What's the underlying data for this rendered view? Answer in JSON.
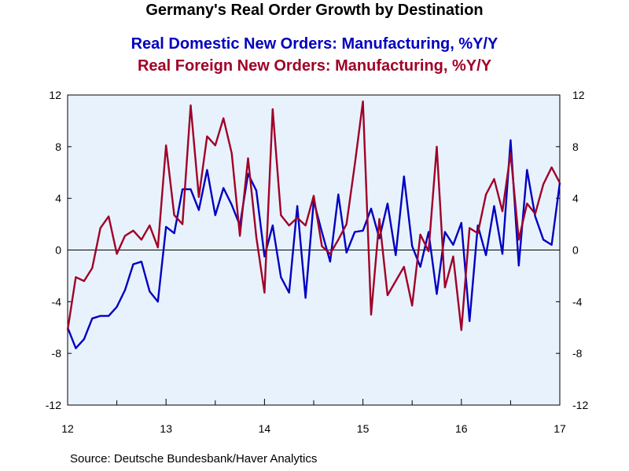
{
  "chart_data": {
    "type": "line",
    "title": "Germany's Real Order Growth by Destination",
    "xlabel": "",
    "ylabel": "",
    "ylim": [
      -12,
      12
    ],
    "yticks": [
      "12",
      "8",
      "4",
      "0",
      "-4",
      "-8",
      "-12"
    ],
    "xticks": [
      "12",
      "13",
      "14",
      "15",
      "16",
      "17"
    ],
    "xlim": [
      2012,
      2017
    ],
    "grid": false,
    "zero_line": true,
    "source": "Source:  Deutsche Bundesbank/Haver Analytics",
    "colors": {
      "background": "#ffffff",
      "plot_bg": "#e8f2fc",
      "domestic": "#0000c0",
      "foreign": "#a00028"
    },
    "series": [
      {
        "name": "Real Domestic New Orders: Manufacturing, %Y/Y",
        "color": "#0000c0",
        "x": [
          2012.0,
          2012.083,
          2012.167,
          2012.25,
          2012.333,
          2012.417,
          2012.5,
          2012.583,
          2012.667,
          2012.75,
          2012.833,
          2012.917,
          2013.0,
          2013.083,
          2013.167,
          2013.25,
          2013.333,
          2013.417,
          2013.5,
          2013.583,
          2013.667,
          2013.75,
          2013.833,
          2013.917,
          2014.0,
          2014.083,
          2014.167,
          2014.25,
          2014.333,
          2014.417,
          2014.5,
          2014.583,
          2014.667,
          2014.75,
          2014.833,
          2014.917,
          2015.0,
          2015.083,
          2015.167,
          2015.25,
          2015.333,
          2015.417,
          2015.5,
          2015.583,
          2015.667,
          2015.75,
          2015.833,
          2015.917,
          2016.0,
          2016.083,
          2016.167,
          2016.25,
          2016.333,
          2016.417,
          2016.5,
          2016.583,
          2016.667,
          2016.75,
          2016.833,
          2016.917,
          2017.0
        ],
        "values": [
          -6.0,
          -7.6,
          -6.9,
          -5.3,
          -5.1,
          -5.1,
          -4.4,
          -3.1,
          -1.1,
          -0.9,
          -3.2,
          -4.0,
          1.8,
          1.3,
          4.7,
          4.7,
          3.1,
          6.2,
          2.7,
          4.8,
          3.5,
          1.9,
          5.9,
          4.6,
          -0.5,
          1.9,
          -2.1,
          -3.3,
          3.4,
          -3.7,
          3.8,
          1.4,
          -0.9,
          4.3,
          -0.2,
          1.4,
          1.5,
          3.2,
          0.9,
          3.6,
          -0.4,
          5.7,
          0.3,
          -1.3,
          1.4,
          -3.4,
          1.4,
          0.4,
          2.1,
          -5.5,
          1.9,
          -0.4,
          3.4,
          -0.3,
          8.5,
          -1.2,
          6.2,
          2.6,
          0.8,
          0.4,
          5.2
        ]
      },
      {
        "name": "Real Foreign New Orders: Manufacturing, %Y/Y",
        "color": "#a00028",
        "x": [
          2012.0,
          2012.083,
          2012.167,
          2012.25,
          2012.333,
          2012.417,
          2012.5,
          2012.583,
          2012.667,
          2012.75,
          2012.833,
          2012.917,
          2013.0,
          2013.083,
          2013.167,
          2013.25,
          2013.333,
          2013.417,
          2013.5,
          2013.583,
          2013.667,
          2013.75,
          2013.833,
          2013.917,
          2014.0,
          2014.083,
          2014.167,
          2014.25,
          2014.333,
          2014.417,
          2014.5,
          2014.583,
          2014.667,
          2014.75,
          2014.833,
          2014.917,
          2015.0,
          2015.083,
          2015.167,
          2015.25,
          2015.333,
          2015.417,
          2015.5,
          2015.583,
          2015.667,
          2015.75,
          2015.833,
          2015.917,
          2016.0,
          2016.083,
          2016.167,
          2016.25,
          2016.333,
          2016.417,
          2016.5,
          2016.583,
          2016.667,
          2016.75,
          2016.833,
          2016.917,
          2017.0
        ],
        "values": [
          -6.2,
          -2.1,
          -2.4,
          -1.4,
          1.7,
          2.6,
          -0.3,
          1.1,
          1.5,
          0.8,
          1.9,
          0.2,
          8.1,
          2.7,
          2.0,
          11.2,
          4.1,
          8.8,
          8.1,
          10.2,
          7.5,
          1.1,
          7.1,
          1.0,
          -3.3,
          10.9,
          2.7,
          1.9,
          2.5,
          1.9,
          4.2,
          0.3,
          -0.3,
          0.8,
          2.0,
          6.6,
          11.5,
          -5.0,
          2.4,
          -3.5,
          -2.4,
          -1.3,
          -4.3,
          1.2,
          -0.1,
          8.0,
          -2.9,
          -0.5,
          -6.2,
          1.7,
          1.3,
          4.3,
          5.5,
          3.0,
          7.5,
          0.8,
          3.6,
          2.8,
          5.1,
          6.4,
          5.2
        ]
      }
    ]
  }
}
